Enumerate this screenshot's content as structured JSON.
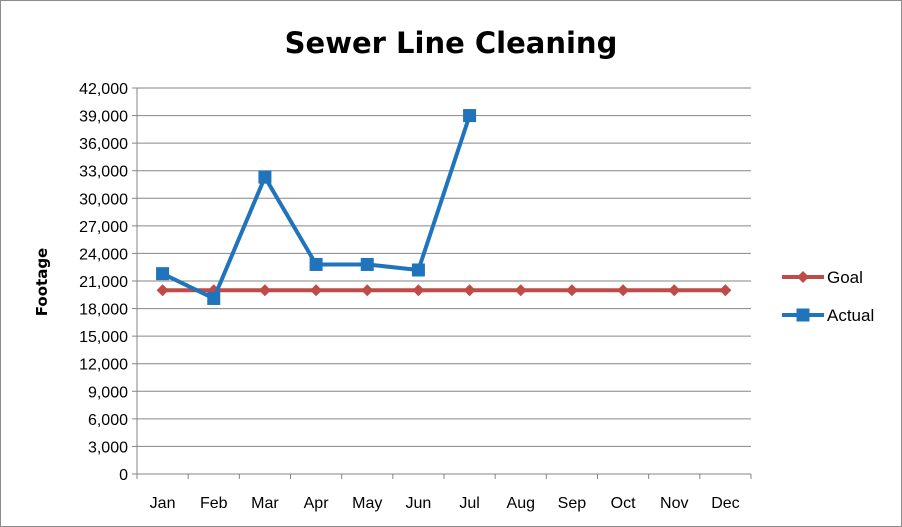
{
  "chart_data": {
    "type": "line",
    "title": "Sewer Line Cleaning",
    "xlabel": "",
    "ylabel": "Footage",
    "categories": [
      "Jan",
      "Feb",
      "Mar",
      "Apr",
      "May",
      "Jun",
      "Jul",
      "Aug",
      "Sep",
      "Oct",
      "Nov",
      "Dec"
    ],
    "ylim": [
      0,
      42000
    ],
    "yticks": [
      0,
      3000,
      6000,
      9000,
      12000,
      15000,
      18000,
      21000,
      24000,
      27000,
      30000,
      33000,
      36000,
      39000,
      42000
    ],
    "ytick_labels": [
      "0",
      "3,000",
      "6,000",
      "9,000",
      "12,000",
      "15,000",
      "18,000",
      "21,000",
      "24,000",
      "27,000",
      "30,000",
      "33,000",
      "36,000",
      "39,000",
      "42,000"
    ],
    "grid": true,
    "legend_position": "right",
    "series": [
      {
        "name": "Goal",
        "color": "#be4b48",
        "marker": "diamond",
        "values": [
          20000,
          20000,
          20000,
          20000,
          20000,
          20000,
          20000,
          20000,
          20000,
          20000,
          20000,
          20000
        ]
      },
      {
        "name": "Actual",
        "color": "#1f74bb",
        "marker": "square",
        "values": [
          21800,
          19100,
          32300,
          22800,
          22800,
          22200,
          39000,
          null,
          null,
          null,
          null,
          null
        ]
      }
    ]
  }
}
